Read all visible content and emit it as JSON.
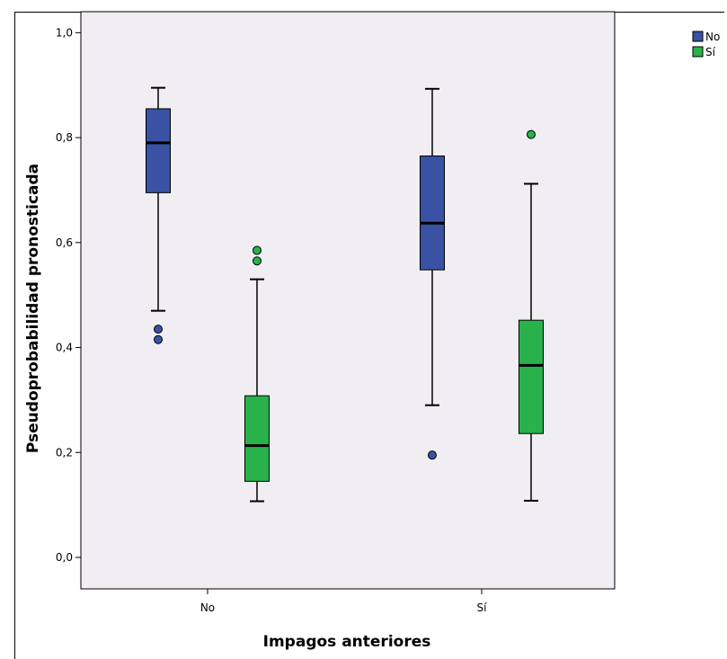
{
  "chart_data": {
    "type": "boxplot",
    "xlabel": "Impagos anteriores",
    "ylabel": "Pseudoprobabilidad pronosticada",
    "categories": [
      "No",
      "Sí"
    ],
    "yticks": [
      "0,0",
      "0,2",
      "0,4",
      "0,6",
      "0,8",
      "1,0"
    ],
    "ylim": [
      -0.06,
      1.04
    ],
    "legend_position": "top-right",
    "grid": false,
    "series": [
      {
        "name": "No",
        "color": "#3952a4",
        "boxes": [
          {
            "whisker_low": 0.47,
            "q1": 0.695,
            "median": 0.79,
            "q3": 0.855,
            "whisker_high": 0.895,
            "outliers": [
              0.435,
              0.415
            ]
          },
          {
            "whisker_low": 0.29,
            "q1": 0.548,
            "median": 0.637,
            "q3": 0.765,
            "whisker_high": 0.893,
            "outliers": [
              0.195
            ]
          }
        ]
      },
      {
        "name": "Sí",
        "color": "#29b24b",
        "boxes": [
          {
            "whisker_low": 0.107,
            "q1": 0.145,
            "median": 0.213,
            "q3": 0.308,
            "whisker_high": 0.53,
            "outliers": [
              0.585,
              0.565
            ]
          },
          {
            "whisker_low": 0.108,
            "q1": 0.236,
            "median": 0.366,
            "q3": 0.452,
            "whisker_high": 0.712,
            "outliers": [
              0.806
            ]
          }
        ]
      }
    ]
  }
}
